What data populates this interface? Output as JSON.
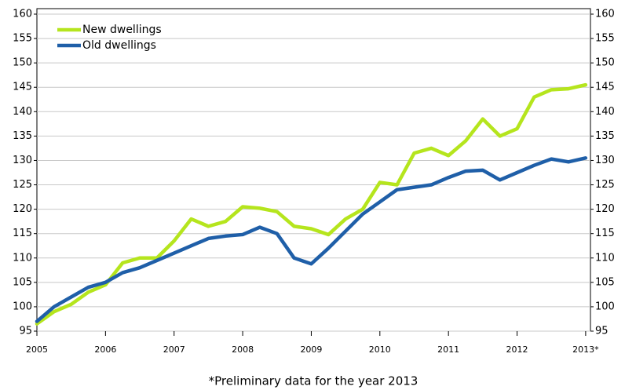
{
  "chart_data": {
    "type": "line",
    "x": [
      2005,
      2005.25,
      2005.5,
      2005.75,
      2006,
      2006.25,
      2006.5,
      2006.75,
      2007,
      2007.25,
      2007.5,
      2007.75,
      2008,
      2008.25,
      2008.5,
      2008.75,
      2009,
      2009.25,
      2009.5,
      2009.75,
      2010,
      2010.25,
      2010.5,
      2010.75,
      2011,
      2011.25,
      2011.5,
      2011.75,
      2012,
      2012.25,
      2012.5,
      2012.75,
      2013
    ],
    "series": [
      {
        "name": "New dwellings",
        "color": "#b5e51d",
        "values": [
          96.5,
          99,
          100.5,
          103,
          104.5,
          109,
          110,
          110,
          113.5,
          118,
          116.5,
          117.5,
          120.5,
          120.2,
          119.5,
          116.5,
          116,
          114.8,
          118,
          120,
          125.5,
          125,
          131.5,
          132.5,
          131,
          134,
          138.5,
          135,
          136.5,
          143,
          144.5,
          144.7,
          145.5
        ]
      },
      {
        "name": "Old dwellings",
        "color": "#1f5fa8",
        "values": [
          97,
          100,
          102,
          104,
          105,
          107,
          108,
          109.5,
          111,
          112.5,
          114,
          114.5,
          114.8,
          116.3,
          115,
          110,
          108.8,
          112,
          115.5,
          119,
          121.5,
          124,
          124.5,
          125,
          126.5,
          127.8,
          128,
          126,
          127.5,
          129,
          130.3,
          129.7,
          130.5
        ]
      }
    ],
    "xlim": [
      2005,
      2013.07
    ],
    "xticks": [
      2005,
      2006,
      2007,
      2008,
      2009,
      2010,
      2011,
      2012,
      {
        "value": 2013,
        "label": "2013*"
      }
    ],
    "ylim": [
      95,
      160
    ],
    "yticks": [
      95,
      100,
      105,
      110,
      115,
      120,
      125,
      130,
      135,
      140,
      145,
      150,
      155,
      160
    ],
    "grid": true,
    "legend": "upper left",
    "note": "*Preliminary data for the year 2013"
  }
}
